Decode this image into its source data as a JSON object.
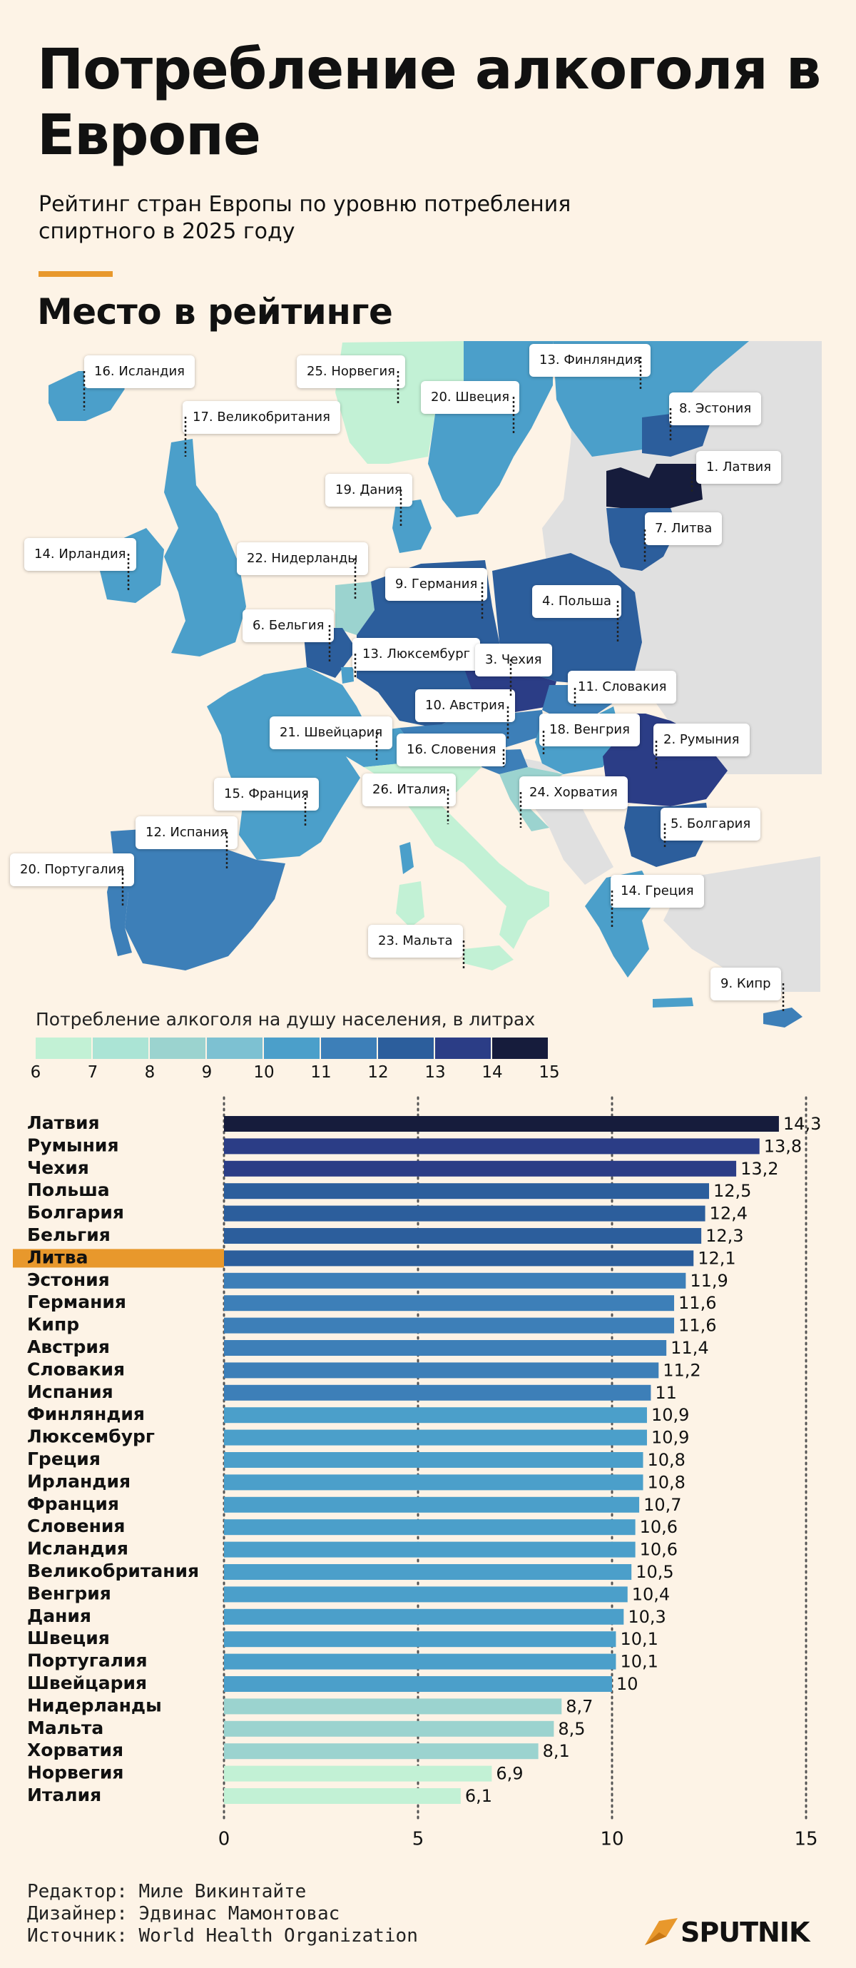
{
  "header": {
    "title": "Потребление алкоголя в Европе",
    "subtitle": "Рейтинг стран Европы по уровню потребления спиртного в 2025 году",
    "section": "Место в рейтинге"
  },
  "map": {
    "labels": [
      "16. Исландия",
      "25. Норвегия",
      "13. Финляндия",
      "20. Швеция",
      "8. Эстония",
      "17. Великобритания",
      "1. Латвия",
      "19. Дания",
      "7. Литва",
      "14. Ирландия",
      "22. Нидерланды",
      "9. Германия",
      "4. Польша",
      "6. Бельгия",
      "13. Люксембург",
      "3. Чехия",
      "11. Словакия",
      "10. Австрия",
      "21. Швейцария",
      "18. Венгрия",
      "2. Румыния",
      "16. Словения",
      "15. Франция",
      "26. Италия",
      "24. Хорватия",
      "5. Болгария",
      "12. Испания",
      "20. Португалия",
      "14. Греция",
      "23. Мальта",
      "9. Кипр"
    ]
  },
  "legend": {
    "title": "Потребление алкоголя на душу населения, в литрах",
    "ticks": [
      "6",
      "7",
      "8",
      "9",
      "10",
      "11",
      "12",
      "13",
      "14",
      "15"
    ],
    "colors": [
      "#c2f1d5",
      "#abe4d5",
      "#9bd3cf",
      "#7dc1d2",
      "#4b9fca",
      "#3d7fb8",
      "#2c5e9c",
      "#2b3d86",
      "#161c3c"
    ]
  },
  "chart_data": {
    "type": "bar",
    "orientation": "horizontal",
    "categories": [
      "Латвия",
      "Румыния",
      "Чехия",
      "Польша",
      "Болгария",
      "Бельгия",
      "Литва",
      "Эстония",
      "Германия",
      "Кипр",
      "Австрия",
      "Словакия",
      "Испания",
      "Финляндия",
      "Люксембург",
      "Греция",
      "Ирландия",
      "Франция",
      "Словения",
      "Исландия",
      "Великобритания",
      "Венгрия",
      "Дания",
      "Швеция",
      "Португалия",
      "Швейцария",
      "Нидерланды",
      "Мальта",
      "Хорватия",
      "Норвегия",
      "Италия"
    ],
    "values": [
      14.3,
      13.8,
      13.2,
      12.5,
      12.4,
      12.3,
      12.1,
      11.9,
      11.6,
      11.6,
      11.4,
      11.2,
      11,
      10.9,
      10.9,
      10.8,
      10.8,
      10.7,
      10.6,
      10.6,
      10.5,
      10.4,
      10.3,
      10.1,
      10.1,
      10,
      8.7,
      8.5,
      8.1,
      6.9,
      6.1
    ],
    "value_labels": [
      "14,3",
      "13,8",
      "13,2",
      "12,5",
      "12,4",
      "12,3",
      "12,1",
      "11,9",
      "11,6",
      "11,6",
      "11,4",
      "11,2",
      "11",
      "10,9",
      "10,9",
      "10,8",
      "10,8",
      "10,7",
      "10,6",
      "10,6",
      "10,5",
      "10,4",
      "10,3",
      "10,1",
      "10,1",
      "10",
      "8,7",
      "8,5",
      "8,1",
      "6,9",
      "6,1"
    ],
    "highlight": "Литва",
    "highlight_color": "#e8982c",
    "xlim": [
      0,
      15
    ],
    "x_ticks": [
      "0",
      "5",
      "10",
      "15"
    ],
    "grid": "dotted vertical at 0, 5, 10, 15"
  },
  "footer": {
    "editor": "Редактор: Миле Викинтайте",
    "designer": "Дизайнер: Эдвинас Мамонтовас",
    "source": "Источник: World Health Organization",
    "logo": "SPUTNIK"
  }
}
